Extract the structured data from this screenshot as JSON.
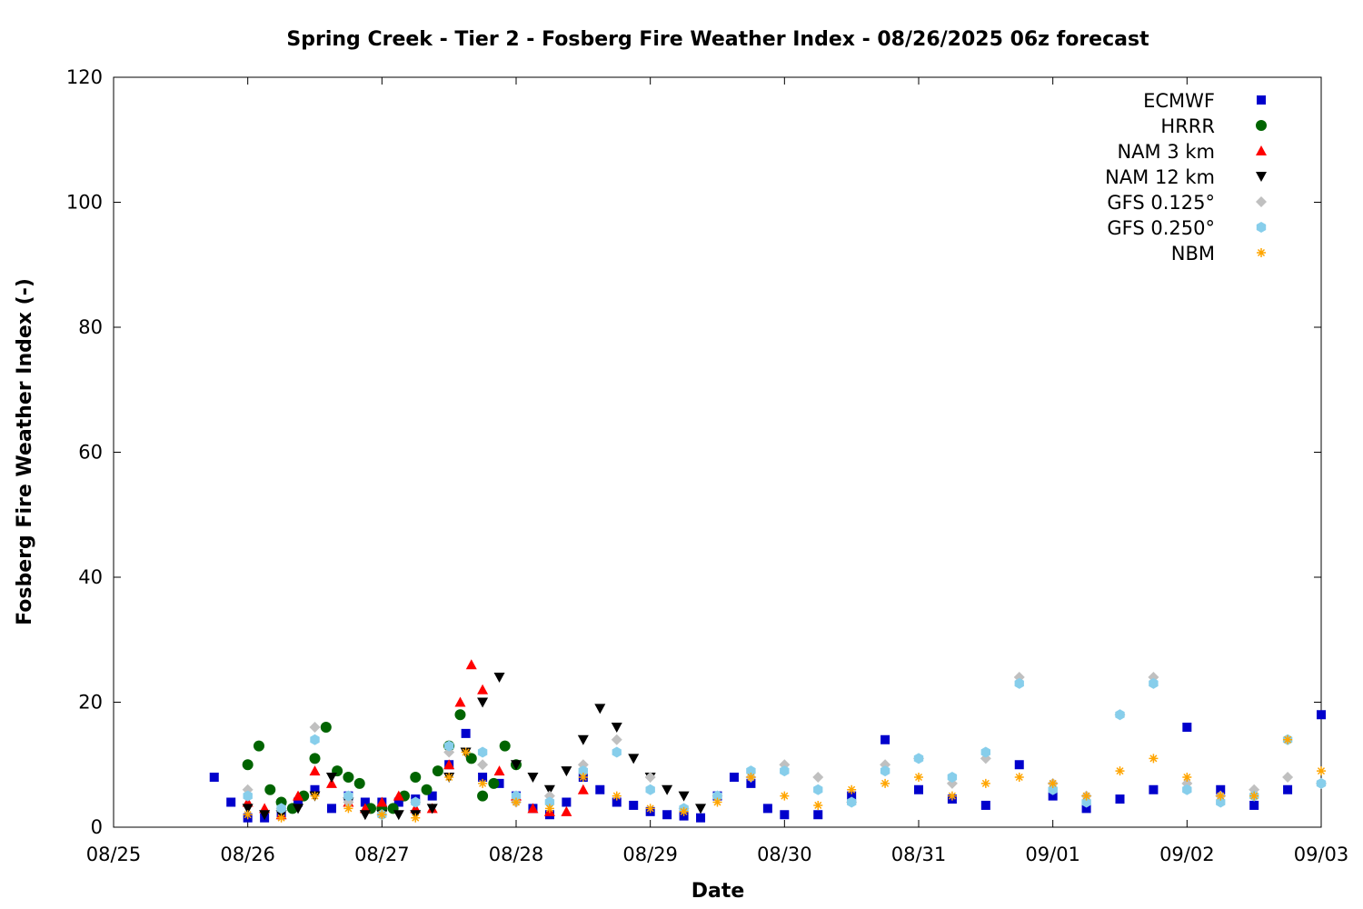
{
  "chart_data": {
    "type": "scatter",
    "title": "Spring Creek - Tier 2 - Fosberg Fire Weather Index - 08/26/2025 06z forecast",
    "xlabel": "Date",
    "ylabel": "Fosberg Fire Weather Index (-)",
    "xlim": [
      "08/25 00:00",
      "09/03 00:00"
    ],
    "ylim": [
      0,
      120
    ],
    "xticks": [
      "08/25",
      "08/26",
      "08/27",
      "08/28",
      "08/29",
      "08/30",
      "08/31",
      "09/01",
      "09/02",
      "09/03"
    ],
    "yticks": [
      "0",
      "20",
      "40",
      "60",
      "80",
      "100",
      "120"
    ],
    "grid": false,
    "legend_position": "top-right",
    "series": [
      {
        "name": "ECMWF",
        "marker": "square",
        "color": "#0000cc",
        "x": [
          "08/25 18:00",
          "08/25 21:00",
          "08/26 00:00",
          "08/26 03:00",
          "08/26 06:00",
          "08/26 09:00",
          "08/26 12:00",
          "08/26 15:00",
          "08/26 18:00",
          "08/26 21:00",
          "08/27 00:00",
          "08/27 03:00",
          "08/27 06:00",
          "08/27 09:00",
          "08/27 12:00",
          "08/27 15:00",
          "08/27 18:00",
          "08/27 21:00",
          "08/28 00:00",
          "08/28 03:00",
          "08/28 06:00",
          "08/28 09:00",
          "08/28 12:00",
          "08/28 15:00",
          "08/28 18:00",
          "08/28 21:00",
          "08/29 00:00",
          "08/29 03:00",
          "08/29 06:00",
          "08/29 09:00",
          "08/29 12:00",
          "08/29 15:00",
          "08/29 18:00",
          "08/29 21:00",
          "08/30 00:00",
          "08/30 06:00",
          "08/30 12:00",
          "08/30 18:00",
          "08/31 00:00",
          "08/31 06:00",
          "08/31 12:00",
          "08/31 18:00",
          "09/01 00:00",
          "09/01 06:00",
          "09/01 12:00",
          "09/01 18:00",
          "09/02 00:00",
          "09/02 06:00",
          "09/02 12:00",
          "09/02 18:00",
          "09/03 00:00"
        ],
        "y": [
          8,
          4,
          1.5,
          1.5,
          2,
          4,
          6,
          3,
          5,
          4,
          4,
          4,
          4.5,
          5,
          10,
          15,
          8,
          7,
          5,
          3,
          2,
          4,
          8,
          6,
          4,
          3.5,
          2.5,
          2,
          1.8,
          1.5,
          5,
          8,
          7,
          3,
          2,
          2,
          5,
          14,
          6,
          4.5,
          3.5,
          10,
          5,
          3,
          4.5,
          6,
          16,
          6,
          3.5,
          6,
          18
        ]
      },
      {
        "name": "HRRR",
        "marker": "circle",
        "color": "#006400",
        "x": [
          "08/26 00:00",
          "08/26 02:00",
          "08/26 04:00",
          "08/26 06:00",
          "08/26 08:00",
          "08/26 10:00",
          "08/26 12:00",
          "08/26 14:00",
          "08/26 16:00",
          "08/26 18:00",
          "08/26 20:00",
          "08/26 22:00",
          "08/27 00:00",
          "08/27 02:00",
          "08/27 04:00",
          "08/27 06:00",
          "08/27 08:00",
          "08/27 10:00",
          "08/27 12:00",
          "08/27 14:00",
          "08/27 16:00",
          "08/27 18:00",
          "08/27 20:00",
          "08/27 22:00",
          "08/28 00:00"
        ],
        "y": [
          10,
          13,
          6,
          4,
          3,
          5,
          11,
          16,
          9,
          8,
          7,
          3,
          3,
          3,
          5,
          8,
          6,
          9,
          13,
          18,
          11,
          5,
          7,
          13,
          10
        ]
      },
      {
        "name": "NAM 3 km",
        "marker": "triangle-up",
        "color": "#ff0000",
        "x": [
          "08/26 00:00",
          "08/26 03:00",
          "08/26 06:00",
          "08/26 09:00",
          "08/26 12:00",
          "08/26 15:00",
          "08/26 18:00",
          "08/26 21:00",
          "08/27 00:00",
          "08/27 03:00",
          "08/27 06:00",
          "08/27 09:00",
          "08/27 12:00",
          "08/27 14:00",
          "08/27 16:00",
          "08/27 18:00",
          "08/27 21:00",
          "08/28 00:00",
          "08/28 03:00",
          "08/28 06:00",
          "08/28 09:00",
          "08/28 12:00"
        ],
        "y": [
          4,
          3,
          2,
          5,
          9,
          7,
          4,
          3,
          4,
          5,
          3,
          3,
          10,
          20,
          26,
          22,
          9,
          5,
          3,
          2.5,
          2.5,
          6
        ]
      },
      {
        "name": "NAM 12 km",
        "marker": "triangle-down",
        "color": "#000000",
        "x": [
          "08/26 00:00",
          "08/26 03:00",
          "08/26 06:00",
          "08/26 09:00",
          "08/26 12:00",
          "08/26 15:00",
          "08/26 18:00",
          "08/26 21:00",
          "08/27 00:00",
          "08/27 03:00",
          "08/27 06:00",
          "08/27 09:00",
          "08/27 12:00",
          "08/27 15:00",
          "08/27 18:00",
          "08/27 21:00",
          "08/28 00:00",
          "08/28 03:00",
          "08/28 06:00",
          "08/28 09:00",
          "08/28 12:00",
          "08/28 15:00",
          "08/28 18:00",
          "08/28 21:00",
          "08/29 00:00",
          "08/29 03:00",
          "08/29 06:00",
          "08/29 09:00"
        ],
        "y": [
          3,
          2,
          2,
          3,
          5,
          8,
          4,
          2,
          2,
          2,
          2,
          3,
          8,
          12,
          20,
          24,
          10,
          8,
          6,
          9,
          14,
          19,
          16,
          11,
          8,
          6,
          5,
          3
        ]
      },
      {
        "name": "GFS 0.125°",
        "marker": "diamond",
        "color": "#c0c0c0",
        "x": [
          "08/26 00:00",
          "08/26 06:00",
          "08/26 12:00",
          "08/26 18:00",
          "08/27 00:00",
          "08/27 06:00",
          "08/27 12:00",
          "08/27 18:00",
          "08/28 00:00",
          "08/28 06:00",
          "08/28 12:00",
          "08/28 18:00",
          "08/29 00:00",
          "08/29 06:00",
          "08/29 12:00",
          "08/29 18:00",
          "08/30 00:00",
          "08/30 06:00",
          "08/30 12:00",
          "08/30 18:00",
          "08/31 00:00",
          "08/31 06:00",
          "08/31 12:00",
          "08/31 18:00",
          "09/01 00:00",
          "09/01 06:00",
          "09/01 12:00",
          "09/01 18:00",
          "09/02 00:00",
          "09/02 06:00",
          "09/02 12:00",
          "09/02 18:00",
          "09/03 00:00"
        ],
        "y": [
          6,
          3,
          16,
          4,
          2,
          4,
          12,
          10,
          4,
          5,
          10,
          14,
          8,
          3,
          5,
          8,
          10,
          8,
          4,
          10,
          11,
          7,
          11,
          24,
          7,
          5,
          18,
          24,
          7,
          5,
          6,
          8,
          7
        ]
      },
      {
        "name": "GFS 0.250°",
        "marker": "hexagon",
        "color": "#87ceeb",
        "x": [
          "08/26 00:00",
          "08/26 06:00",
          "08/26 12:00",
          "08/26 18:00",
          "08/27 00:00",
          "08/27 06:00",
          "08/27 12:00",
          "08/27 18:00",
          "08/28 00:00",
          "08/28 06:00",
          "08/28 12:00",
          "08/28 18:00",
          "08/29 00:00",
          "08/29 06:00",
          "08/29 12:00",
          "08/29 18:00",
          "08/30 00:00",
          "08/30 06:00",
          "08/30 12:00",
          "08/30 18:00",
          "08/31 00:00",
          "08/31 06:00",
          "08/31 12:00",
          "08/31 18:00",
          "09/01 00:00",
          "09/01 06:00",
          "09/01 12:00",
          "09/01 18:00",
          "09/02 00:00",
          "09/02 06:00",
          "09/02 12:00",
          "09/02 18:00",
          "09/03 00:00"
        ],
        "y": [
          5,
          3,
          14,
          5,
          2,
          4,
          13,
          12,
          5,
          4,
          9,
          12,
          6,
          3,
          5,
          9,
          9,
          6,
          4,
          9,
          11,
          8,
          12,
          23,
          6,
          4,
          18,
          23,
          6,
          4,
          5,
          14,
          7
        ]
      },
      {
        "name": "NBM",
        "marker": "asterisk",
        "color": "#ffa500",
        "x": [
          "08/26 00:00",
          "08/26 06:00",
          "08/26 12:00",
          "08/26 18:00",
          "08/27 00:00",
          "08/27 06:00",
          "08/27 12:00",
          "08/27 15:00",
          "08/27 18:00",
          "08/28 00:00",
          "08/28 06:00",
          "08/28 12:00",
          "08/28 18:00",
          "08/29 00:00",
          "08/29 06:00",
          "08/29 12:00",
          "08/29 18:00",
          "08/30 00:00",
          "08/30 06:00",
          "08/30 12:00",
          "08/30 18:00",
          "08/31 00:00",
          "08/31 06:00",
          "08/31 12:00",
          "08/31 18:00",
          "09/01 00:00",
          "09/01 06:00",
          "09/01 12:00",
          "09/01 18:00",
          "09/02 00:00",
          "09/02 06:00",
          "09/02 12:00",
          "09/02 18:00",
          "09/03 00:00"
        ],
        "y": [
          2,
          1.5,
          5,
          3,
          2,
          1.5,
          8,
          12,
          7,
          4,
          3,
          8,
          5,
          3,
          2.5,
          4,
          8,
          5,
          3.5,
          6,
          7,
          8,
          5,
          7,
          8,
          7,
          5,
          9,
          11,
          8,
          5,
          5,
          14,
          9
        ]
      }
    ]
  }
}
